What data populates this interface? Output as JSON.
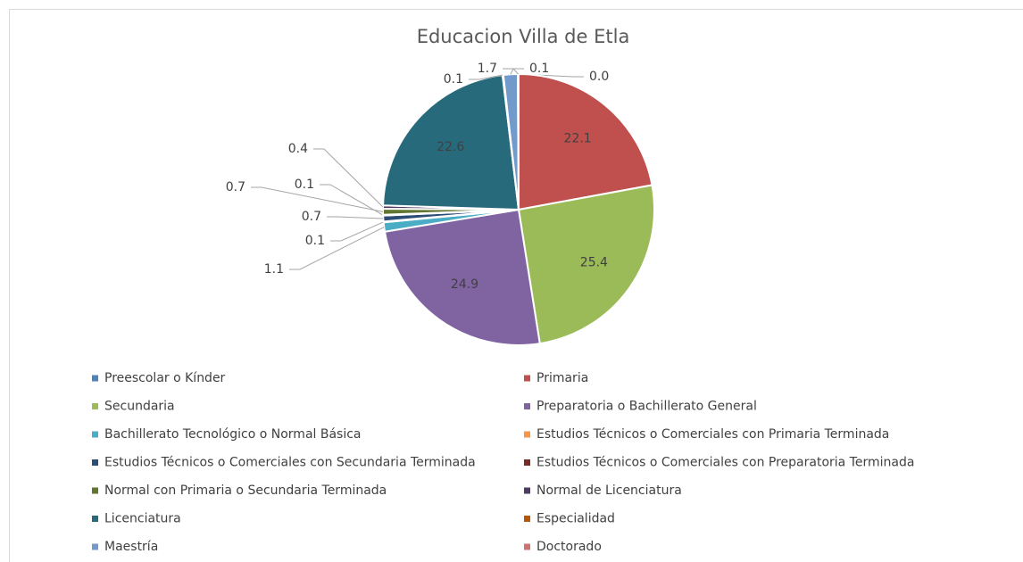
{
  "chart_data": {
    "type": "pie",
    "title": "Educacion Villa de Etla",
    "categories": [
      "Preescolar o Kínder",
      "Primaria",
      "Secundaria",
      "Preparatoria o Bachillerato General",
      "Bachillerato Tecnológico o Normal Básica",
      "Estudios Técnicos o Comerciales con Primaria Terminada",
      "Estudios Técnicos o Comerciales con Secundaria Terminada",
      "Estudios Técnicos o Comerciales con Preparatoria Terminada",
      "Normal con Primaria o Secundaria Terminada",
      "Normal de Licenciatura",
      "Licenciatura",
      "Especialidad",
      "Maestría",
      "Doctorado"
    ],
    "values": [
      0.0,
      22.1,
      25.4,
      24.9,
      1.1,
      0.1,
      0.7,
      0.1,
      0.7,
      0.4,
      22.6,
      0.1,
      1.7,
      0.1
    ],
    "value_labels": [
      "0.0",
      "22.1",
      "25.4",
      "24.9",
      "1.1",
      "0.1",
      "0.7",
      "0.1",
      "0.7",
      "0.4",
      "22.6",
      "0.1",
      "1.7",
      "0.1"
    ],
    "colors": [
      "#4f81bd",
      "#c0504d",
      "#9bbb59",
      "#8064a2",
      "#4bacc6",
      "#f79646",
      "#2c4d75",
      "#772c2a",
      "#5f7530",
      "#4d3b62",
      "#276a7c",
      "#b65708",
      "#729aca",
      "#cd7371"
    ],
    "legend": "bottom"
  }
}
